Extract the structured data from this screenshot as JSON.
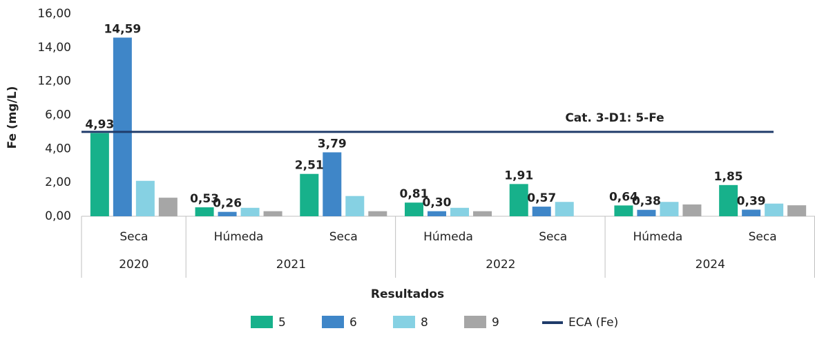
{
  "chart_data": {
    "type": "bar",
    "y_label": "Fe (mg/L)",
    "x_label": "Resultados",
    "groups": [
      {
        "label": "2020",
        "categories": [
          "Seca"
        ]
      },
      {
        "label": "2021",
        "categories": [
          "Húmeda",
          "Seca"
        ]
      },
      {
        "label": "2022",
        "categories": [
          "Húmeda",
          "Seca"
        ]
      },
      {
        "label": "2024",
        "categories": [
          "Húmeda",
          "Seca"
        ]
      }
    ],
    "series": [
      {
        "name": "5",
        "color": "#17b18b",
        "values": [
          4.93,
          0.53,
          2.51,
          0.81,
          1.91,
          0.64,
          1.85
        ],
        "value_labels": [
          "4,93",
          "0,53",
          "2,51",
          "0,81",
          "1,91",
          "0,64",
          "1,85"
        ]
      },
      {
        "name": "6",
        "color": "#3f86c8",
        "values": [
          14.59,
          0.26,
          3.79,
          0.3,
          0.57,
          0.38,
          0.39
        ],
        "value_labels": [
          "14,59",
          "0,26",
          "3,79",
          "0,30",
          "0,57",
          "0,38",
          "0,39"
        ]
      },
      {
        "name": "8",
        "color": "#86d1e3",
        "values": [
          2.1,
          0.5,
          1.2,
          0.5,
          0.85,
          0.85,
          0.75
        ]
      },
      {
        "name": "9",
        "color": "#a6a6a6",
        "values": [
          1.1,
          0.3,
          0.3,
          0.3,
          null,
          0.7,
          0.65
        ]
      }
    ],
    "reference": {
      "name": "ECA (Fe)",
      "value": 5,
      "label": "Cat. 3-D1: 5-Fe",
      "color": "#1f3b6a"
    },
    "ylim": [
      0,
      16
    ],
    "yticks": [
      {
        "value": 0,
        "label": "0,00"
      },
      {
        "value": 2,
        "label": "2,00"
      },
      {
        "value": 4,
        "label": "4,00"
      },
      {
        "value": 6,
        "label": "6,00"
      },
      {
        "value": 12,
        "label": "12,00"
      },
      {
        "value": 14,
        "label": "14,00"
      },
      {
        "value": 16,
        "label": "16,00"
      }
    ],
    "grid": false
  }
}
